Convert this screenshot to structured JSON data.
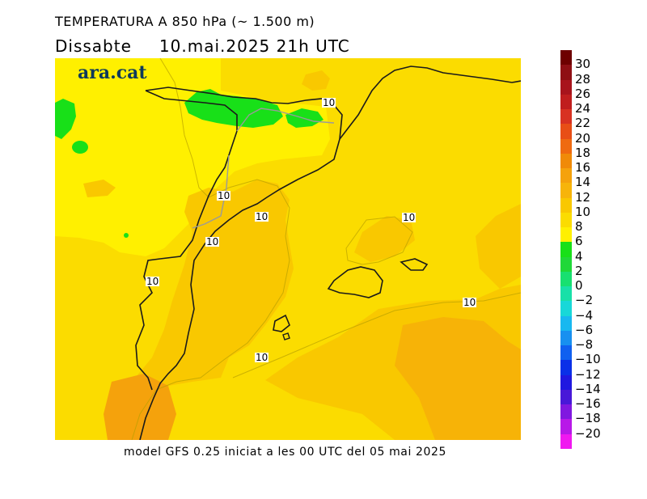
{
  "header": {
    "title": "TEMPERATURA A 850 hPa (~ 1.500 m)",
    "day": "Dissabte",
    "datetime": "10.mai.2025 21h UTC"
  },
  "brand": {
    "logo_text": "ara.cat"
  },
  "map": {
    "contour_labels": [
      "10",
      "10",
      "10",
      "10",
      "10",
      "10",
      "10",
      "10"
    ]
  },
  "footer": {
    "model_text": "model GFS 0.25 iniciat a les 00 UTC del 05 mai 2025"
  },
  "legend": {
    "labels": [
      "30",
      "28",
      "26",
      "24",
      "22",
      "20",
      "18",
      "16",
      "14",
      "12",
      "10",
      "8",
      "6",
      "4",
      "2",
      "0",
      "−2",
      "−4",
      "−6",
      "−8",
      "−10",
      "−12",
      "−14",
      "−16",
      "−18",
      "−20"
    ],
    "colors": [
      "#6e0000",
      "#8f0f14",
      "#a8141c",
      "#c01e1e",
      "#d83222",
      "#e84e16",
      "#ef6a10",
      "#f08a08",
      "#f5a20c",
      "#f7b40a",
      "#f9c800",
      "#fbdc00",
      "#fff000",
      "#18e018",
      "#20d838",
      "#18e070",
      "#18e0a8",
      "#18d8d8",
      "#18b8f0",
      "#1890f0",
      "#1060f0",
      "#0a30e8",
      "#2018e0",
      "#4818d8",
      "#8018e0",
      "#b818e8",
      "#f018f0"
    ]
  }
}
